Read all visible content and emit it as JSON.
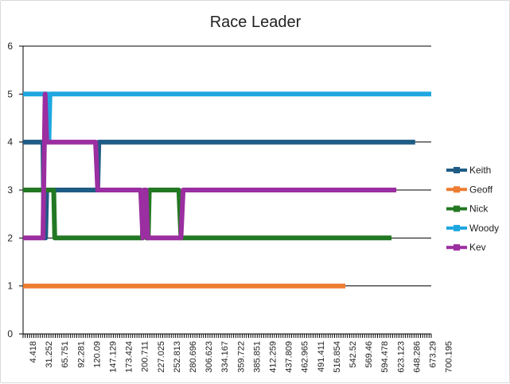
{
  "chart_data": {
    "type": "line",
    "title": "Race Leader",
    "xlabel": "",
    "ylabel": "",
    "ylim": [
      0,
      6
    ],
    "yticks": [
      "0",
      "1",
      "2",
      "3",
      "4",
      "5",
      "6"
    ],
    "grid": "horizontal",
    "legend_position": "right",
    "x_tick_labels": [
      "4.418",
      "31.252",
      "65.751",
      "92.281",
      "120.09",
      "147.129",
      "173.424",
      "200.711",
      "227.025",
      "252.813",
      "280.696",
      "306.623",
      "334.167",
      "359.722",
      "385.851",
      "412.259",
      "437.809",
      "462.965",
      "491.411",
      "516.854",
      "542.52",
      "569.46",
      "594.478",
      "623.123",
      "648.286",
      "673.29",
      "700.195"
    ],
    "x_domain": [
      0,
      760
    ],
    "series": [
      {
        "name": "Keith",
        "color": "#1f5c85",
        "points": [
          [
            0,
            4
          ],
          [
            37,
            4
          ],
          [
            39,
            2
          ],
          [
            42,
            2
          ],
          [
            44,
            3
          ],
          [
            139,
            3
          ],
          [
            141,
            4
          ],
          [
            730,
            4
          ]
        ]
      },
      {
        "name": "Geoff",
        "color": "#ed7d31",
        "points": [
          [
            0,
            1
          ],
          [
            600,
            1
          ]
        ]
      },
      {
        "name": "Nick",
        "color": "#237823",
        "points": [
          [
            0,
            3
          ],
          [
            57,
            3
          ],
          [
            59,
            2
          ],
          [
            222,
            2
          ],
          [
            225,
            3
          ],
          [
            227,
            3
          ],
          [
            230,
            2
          ],
          [
            233,
            2
          ],
          [
            235,
            3
          ],
          [
            290,
            3
          ],
          [
            294,
            2
          ],
          [
            686,
            2
          ]
        ]
      },
      {
        "name": "Woody",
        "color": "#1ea7e0",
        "points": [
          [
            0,
            5
          ],
          [
            46,
            5
          ],
          [
            48,
            4
          ],
          [
            50,
            5
          ],
          [
            760,
            5
          ]
        ]
      },
      {
        "name": "Kev",
        "color": "#9b2ea0",
        "points": [
          [
            0,
            2
          ],
          [
            37,
            2
          ],
          [
            41,
            5
          ],
          [
            44,
            4
          ],
          [
            135,
            4
          ],
          [
            139,
            3
          ],
          [
            219,
            3
          ],
          [
            223,
            2
          ],
          [
            226,
            3
          ],
          [
            229,
            3
          ],
          [
            232,
            2
          ],
          [
            294,
            2
          ],
          [
            298,
            3
          ],
          [
            695,
            3
          ]
        ]
      }
    ]
  }
}
